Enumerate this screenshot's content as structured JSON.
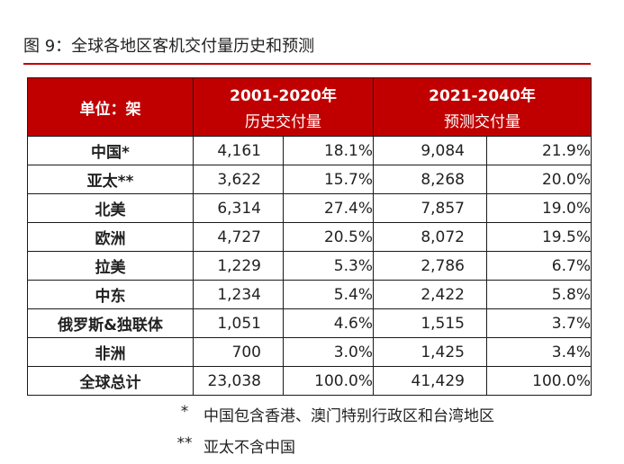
{
  "title": "图 9：全球各地区客机交付量历史和预测",
  "table": {
    "unit_label": "单位：架",
    "group1_years": "2001-2020年",
    "group1_sub": "历史交付量",
    "group2_years": "2021-2040年",
    "group2_sub": "预测交付量",
    "rows": [
      {
        "region": "中国*",
        "h_count": "4,161",
        "h_share": "18.1%",
        "f_count": "9,084",
        "f_share": "21.9%"
      },
      {
        "region": "亚太**",
        "h_count": "3,622",
        "h_share": "15.7%",
        "f_count": "8,268",
        "f_share": "20.0%"
      },
      {
        "region": "北美",
        "h_count": "6,314",
        "h_share": "27.4%",
        "f_count": "7,857",
        "f_share": "19.0%"
      },
      {
        "region": "欧洲",
        "h_count": "4,727",
        "h_share": "20.5%",
        "f_count": "8,072",
        "f_share": "19.5%"
      },
      {
        "region": "拉美",
        "h_count": "1,229",
        "h_share": "5.3%",
        "f_count": "2,786",
        "f_share": "6.7%"
      },
      {
        "region": "中东",
        "h_count": "1,234",
        "h_share": "5.4%",
        "f_count": "2,422",
        "f_share": "5.8%"
      },
      {
        "region": "俄罗斯&独联体",
        "h_count": "1,051",
        "h_share": "4.6%",
        "f_count": "1,515",
        "f_share": "3.7%"
      },
      {
        "region": "非洲",
        "h_count": "700",
        "h_share": "3.0%",
        "f_count": "1,425",
        "f_share": "3.4%"
      },
      {
        "region": "全球总计",
        "h_count": "23,038",
        "h_share": "100.0%",
        "f_count": "41,429",
        "f_share": "100.0%"
      }
    ]
  },
  "notes": [
    {
      "mark": "*",
      "text": "中国包含香港、澳门特别行政区和台湾地区"
    },
    {
      "mark": "**",
      "text": "亚太不含中国"
    }
  ],
  "colors": {
    "header_bg": "#c00000",
    "rule": "#c00000"
  }
}
